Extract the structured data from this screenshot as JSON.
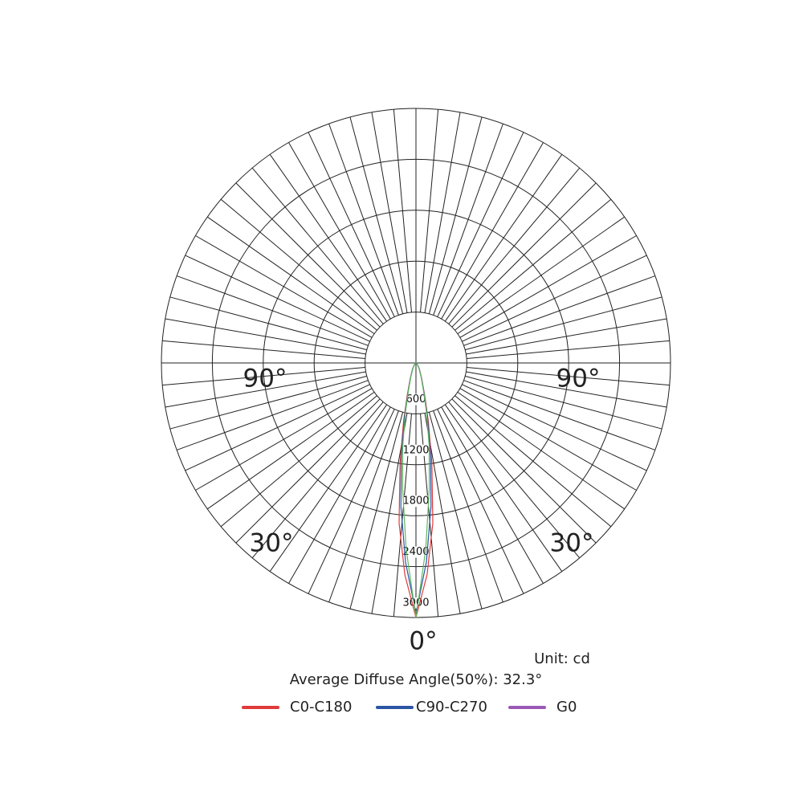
{
  "chart_data": {
    "type": "polar",
    "angles": [
      0,
      3,
      6,
      9,
      12,
      15,
      20,
      30,
      40,
      60,
      90
    ],
    "series": [
      {
        "name": "C0-C180",
        "color": "#e03a3a",
        "values": [
          3000,
          2500,
          1900,
          1200,
          700,
          400,
          200,
          80,
          30,
          10,
          0
        ]
      },
      {
        "name": "C90-C270",
        "color": "#2b55a5",
        "values": [
          2950,
          2350,
          1700,
          1100,
          650,
          370,
          190,
          75,
          28,
          9,
          0
        ]
      },
      {
        "name": "G0",
        "color": "#9b59b6",
        "line_color": "#5fb85f",
        "values": [
          3000,
          2200,
          1500,
          1000,
          600,
          350,
          180,
          70,
          25,
          8,
          0
        ]
      }
    ],
    "rlim": [
      0,
      3000
    ],
    "rticks": [
      600,
      1200,
      1800,
      2400,
      3000
    ],
    "angle_labels": [
      "90°",
      "90°",
      "30°",
      "30°",
      "0°"
    ],
    "unit": "Unit: cd",
    "note": "Average Diffuse Angle(50%): 32.3°"
  }
}
